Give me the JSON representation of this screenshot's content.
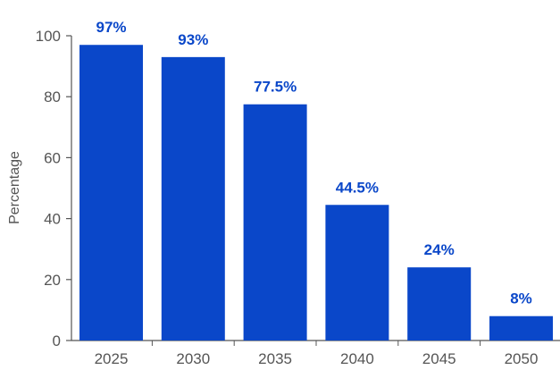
{
  "chart_data": {
    "type": "bar",
    "title": "",
    "xlabel": "",
    "ylabel": "Percentage",
    "categories": [
      "2025",
      "2030",
      "2035",
      "2040",
      "2045",
      "2050"
    ],
    "values": [
      97,
      93,
      77.5,
      44.5,
      24,
      8
    ],
    "data_labels": [
      "97%",
      "93%",
      "77.5%",
      "44.5%",
      "24%",
      "8%"
    ],
    "ylim": [
      0,
      100
    ],
    "yticks": [
      0,
      20,
      40,
      60,
      80,
      100
    ],
    "grid": false,
    "legend": "none",
    "colors": {
      "bar": "#0a47c9",
      "label": "#0a47c9",
      "axis": "#555555"
    }
  }
}
